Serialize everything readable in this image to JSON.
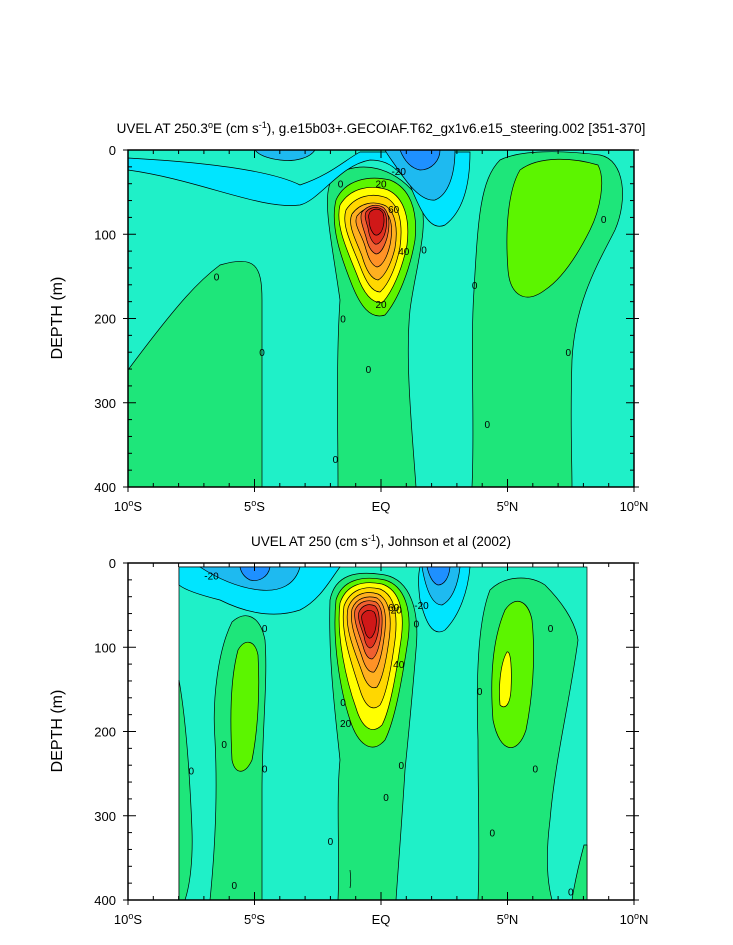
{
  "panels": [
    {
      "id": "top",
      "title_prefix": "UVEL AT 250.3",
      "title_deg": "o",
      "title_mid": "E (cm s",
      "title_exp": "-1",
      "title_suffix": "), g.e15b03+.GECOIAF.T62_gx1v6.e15_steering.002 [351-370]",
      "ylabel": "DEPTH (m)"
    },
    {
      "id": "bottom",
      "title_prefix": "UVEL AT 250 (cm s",
      "title_exp": "-1",
      "title_suffix": "), Johnson et al (2002)",
      "ylabel": "DEPTH (m)"
    }
  ],
  "x_ticks": [
    {
      "value": -10,
      "num": "10",
      "deg": "o",
      "hem": "S"
    },
    {
      "value": -5,
      "num": "5",
      "deg": "o",
      "hem": "S"
    },
    {
      "value": 0,
      "num": "EQ",
      "deg": "",
      "hem": ""
    },
    {
      "value": 5,
      "num": "5",
      "deg": "o",
      "hem": "N"
    },
    {
      "value": 10,
      "num": "10",
      "deg": "o",
      "hem": "N"
    }
  ],
  "y_ticks": [
    "0",
    "100",
    "200",
    "300",
    "400"
  ],
  "chart_data": [
    {
      "type": "heatmap",
      "subtype": "filled contour",
      "title": "UVEL AT 250.3°E (cm s-1), g.e15b03+.GECOIAF.T62_gx1v6.e15_steering.002 [351-370]",
      "xlabel": "",
      "ylabel": "DEPTH (m)",
      "xlim": [
        -10,
        10
      ],
      "ylim": [
        400,
        0
      ],
      "contour_interval": 10,
      "colors": {
        "le_-30": "#1e90ff",
        "-30_-20": "#1ebaf0",
        "-20_-10": "#00e5ff",
        "-10_0": "#1ff0c8",
        "0_10": "#1ee67a",
        "10_20": "#5cf500",
        "20_30": "#ffff00",
        "30_40": "#ffd700",
        "40_50": "#ffb020",
        "50_60": "#ff9226",
        "60_70": "#f06030",
        "70_80": "#e03020",
        "ge_80": "#d01818"
      },
      "features": [
        {
          "name": "EUC core",
          "x": 0,
          "depth": 90,
          "max_value": 80
        },
        {
          "name": "SEC min north",
          "x": 1.8,
          "depth": 15,
          "value": -30
        },
        {
          "name": "SEC min south",
          "x": -2.5,
          "depth": 10,
          "value": -20
        },
        {
          "name": "NECC",
          "x": 6,
          "depth": 80,
          "value": 10
        }
      ],
      "contour_labels": [
        {
          "text": "-20",
          "x": 0.7,
          "depth": 25
        },
        {
          "text": "0",
          "x": -1.6,
          "depth": 40
        },
        {
          "text": "20",
          "x": 0,
          "depth": 40
        },
        {
          "text": "60",
          "x": 0.5,
          "depth": 70
        },
        {
          "text": "40",
          "x": 0.9,
          "depth": 120
        },
        {
          "text": "20",
          "x": 0,
          "depth": 183
        },
        {
          "text": "0",
          "x": 1.7,
          "depth": 118
        },
        {
          "text": "0",
          "x": -6.5,
          "depth": 150
        },
        {
          "text": "0",
          "x": -1.5,
          "depth": 200
        },
        {
          "text": "0",
          "x": -4.7,
          "depth": 240
        },
        {
          "text": "0",
          "x": -0.5,
          "depth": 260
        },
        {
          "text": "0",
          "x": -1.8,
          "depth": 367
        },
        {
          "text": "0",
          "x": 3.7,
          "depth": 160
        },
        {
          "text": "0",
          "x": 4.2,
          "depth": 325
        },
        {
          "text": "0",
          "x": 7.4,
          "depth": 240
        },
        {
          "text": "0",
          "x": 8.8,
          "depth": 82
        }
      ]
    },
    {
      "type": "heatmap",
      "subtype": "filled contour",
      "title": "UVEL AT 250 (cm s-1), Johnson et al (2002)",
      "xlabel": "",
      "ylabel": "DEPTH (m)",
      "xlim": [
        -10,
        10
      ],
      "ylim": [
        400,
        0
      ],
      "data_xrange": [
        -8,
        8.2
      ],
      "contour_interval": 10,
      "features": [
        {
          "name": "EUC core",
          "x": -0.3,
          "depth": 70,
          "max_value": 80
        },
        {
          "name": "SEC min north",
          "x": 2.2,
          "depth": 20,
          "value": -30
        },
        {
          "name": "SEC min south",
          "x": -4,
          "depth": 40,
          "value": -30
        },
        {
          "name": "NECC",
          "x": 5,
          "depth": 130,
          "value": 20
        }
      ],
      "contour_labels": [
        {
          "text": "-20",
          "x": -6.7,
          "depth": 15
        },
        {
          "text": "20",
          "x": 0.6,
          "depth": 55
        },
        {
          "text": "60",
          "x": 0.5,
          "depth": 52
        },
        {
          "text": "-20",
          "x": 1.6,
          "depth": 50
        },
        {
          "text": "40",
          "x": 0.7,
          "depth": 120
        },
        {
          "text": "20",
          "x": -1.4,
          "depth": 190
        },
        {
          "text": "0",
          "x": -4.6,
          "depth": 77
        },
        {
          "text": "0",
          "x": -1.5,
          "depth": 165
        },
        {
          "text": "0",
          "x": -6.2,
          "depth": 215
        },
        {
          "text": "0",
          "x": -7.5,
          "depth": 246
        },
        {
          "text": "0",
          "x": -4.6,
          "depth": 244
        },
        {
          "text": "0",
          "x": -5.8,
          "depth": 382
        },
        {
          "text": "0",
          "x": -2,
          "depth": 330
        },
        {
          "text": "0",
          "x": 0.8,
          "depth": 240
        },
        {
          "text": "0",
          "x": 0.2,
          "depth": 278
        },
        {
          "text": "0",
          "x": 1.4,
          "depth": 72
        },
        {
          "text": "0",
          "x": 3.9,
          "depth": 152
        },
        {
          "text": "0",
          "x": 4.4,
          "depth": 320
        },
        {
          "text": "0",
          "x": 6.1,
          "depth": 244
        },
        {
          "text": "0",
          "x": 6.7,
          "depth": 77
        },
        {
          "text": "0",
          "x": 7.5,
          "depth": 390
        }
      ]
    }
  ]
}
